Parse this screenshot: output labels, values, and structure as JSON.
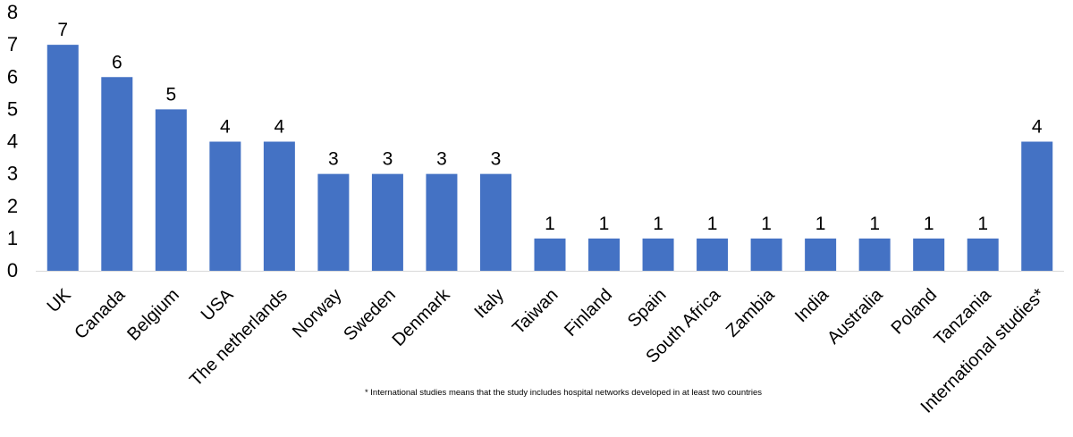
{
  "chart_data": {
    "type": "bar",
    "categories": [
      "UK",
      "Canada",
      "Belgium",
      "USA",
      "The netherlands",
      "Norway",
      "Sweden",
      "Denmark",
      "Italy",
      "Taiwan",
      "Finland",
      "Spain",
      "South Africa",
      "Zambia",
      "India",
      "Australia",
      "Poland",
      "Tanzania",
      "International studies*"
    ],
    "values": [
      7,
      6,
      5,
      4,
      4,
      3,
      3,
      3,
      3,
      1,
      1,
      1,
      1,
      1,
      1,
      1,
      1,
      1,
      4
    ],
    "y_ticks": [
      "0",
      "1",
      "2",
      "3",
      "4",
      "5",
      "6",
      "7",
      "8"
    ],
    "data_labels": [
      "7",
      "6",
      "5",
      "4",
      "4",
      "3",
      "3",
      "3",
      "3",
      "1",
      "1",
      "1",
      "1",
      "1",
      "1",
      "1",
      "1",
      "1",
      "4"
    ],
    "ylim": [
      0,
      8
    ],
    "grid": false,
    "legend": "none",
    "bar_color": "#4472C4",
    "footnote": "* International studies means that the study includes hospital networks developed in at least two countries"
  }
}
